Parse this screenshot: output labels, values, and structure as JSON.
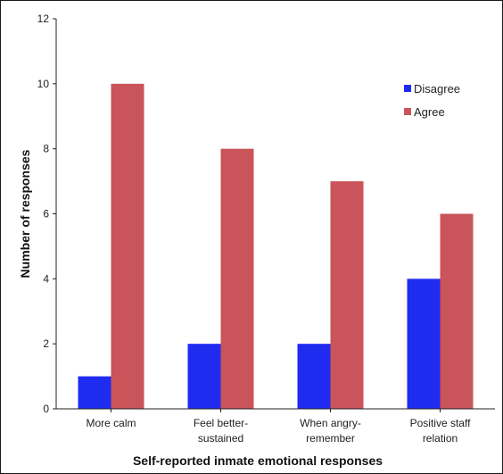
{
  "chart_data": {
    "type": "bar",
    "categories": [
      [
        "More calm"
      ],
      [
        "Feel better-",
        "sustained"
      ],
      [
        "When angry-",
        "remember"
      ],
      [
        "Positive staff",
        "relation"
      ]
    ],
    "series": [
      {
        "name": "Disagree",
        "values": [
          1,
          2,
          2,
          4
        ],
        "color": "#1f2cf0"
      },
      {
        "name": "Agree",
        "values": [
          10,
          8,
          7,
          6
        ],
        "color": "#c9545a"
      }
    ],
    "xlabel": "Self-reported inmate emotional responses",
    "ylabel": "Number of responses",
    "ylim": [
      0,
      12
    ],
    "yticks": [
      0,
      2,
      4,
      6,
      8,
      10,
      12
    ],
    "grid": false,
    "legend_position": "top-right"
  }
}
